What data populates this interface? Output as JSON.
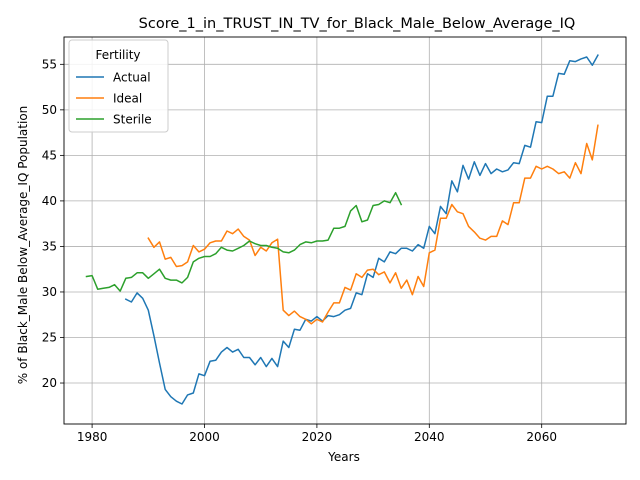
{
  "chart_data": {
    "type": "line",
    "title": "Score_1_in_TRUST_IN_TV_for_Black_Male_Below_Average_IQ",
    "xlabel": "Years",
    "ylabel": "% of Black_Male Below_Average_IQ Population",
    "xlim": [
      1975,
      2075
    ],
    "ylim": [
      15.5,
      58
    ],
    "xticks": [
      1980,
      2000,
      2020,
      2040,
      2060
    ],
    "yticks": [
      20,
      25,
      30,
      35,
      40,
      45,
      50,
      55
    ],
    "grid": true,
    "legend": {
      "title": "Fertility",
      "position": "upper-left"
    },
    "series": [
      {
        "name": "Actual",
        "color": "#1f77b4",
        "x": [
          1986,
          1987,
          1988,
          1989,
          1990,
          1991,
          1992,
          1993,
          1994,
          1995,
          1996,
          1997,
          1998,
          1999,
          2000,
          2001,
          2002,
          2003,
          2004,
          2005,
          2006,
          2007,
          2008,
          2009,
          2010,
          2011,
          2012,
          2013,
          2014,
          2015,
          2016,
          2017,
          2018,
          2019,
          2020,
          2021,
          2022,
          2023,
          2024,
          2025,
          2026,
          2027,
          2028,
          2029,
          2030,
          2031,
          2032,
          2033,
          2034,
          2035,
          2036,
          2037,
          2038,
          2039,
          2040,
          2041,
          2042,
          2043,
          2044,
          2045,
          2046,
          2047,
          2048,
          2049,
          2050,
          2051,
          2052,
          2053,
          2054,
          2055,
          2056,
          2057,
          2058,
          2059,
          2060,
          2061,
          2062,
          2063,
          2064,
          2065,
          2066,
          2067,
          2068,
          2069,
          2070
        ],
        "values": [
          29.2,
          28.9,
          29.9,
          29.3,
          28.0,
          25.2,
          22.2,
          19.3,
          18.5,
          18.0,
          17.7,
          18.7,
          18.9,
          21.0,
          20.8,
          22.4,
          22.5,
          23.4,
          23.9,
          23.4,
          23.7,
          22.8,
          22.8,
          22.0,
          22.8,
          21.8,
          22.7,
          21.8,
          24.6,
          23.9,
          25.9,
          25.8,
          27.0,
          26.8,
          27.3,
          26.8,
          27.4,
          27.3,
          27.5,
          28.0,
          28.2,
          29.9,
          29.7,
          32.0,
          31.6,
          33.7,
          33.3,
          34.4,
          34.2,
          34.8,
          34.8,
          34.5,
          35.2,
          34.8,
          37.2,
          36.4,
          39.4,
          38.6,
          42.2,
          41.0,
          43.9,
          42.4,
          44.3,
          42.8,
          44.1,
          43.0,
          43.5,
          43.2,
          43.4,
          44.2,
          44.1,
          46.1,
          45.9,
          48.7,
          48.6,
          51.5,
          51.5,
          54.0,
          53.9,
          55.4,
          55.3,
          55.6,
          55.8,
          54.9,
          56.0
        ]
      },
      {
        "name": "Ideal",
        "color": "#ff7f0e",
        "x": [
          1990,
          1991,
          1992,
          1993,
          1994,
          1995,
          1996,
          1997,
          1998,
          1999,
          2000,
          2001,
          2002,
          2003,
          2004,
          2005,
          2006,
          2007,
          2008,
          2009,
          2010,
          2011,
          2012,
          2013,
          2014,
          2015,
          2016,
          2017,
          2018,
          2019,
          2020,
          2021,
          2022,
          2023,
          2024,
          2025,
          2026,
          2027,
          2028,
          2029,
          2030,
          2031,
          2032,
          2033,
          2034,
          2035,
          2036,
          2037,
          2038,
          2039,
          2040,
          2041,
          2042,
          2043,
          2044,
          2045,
          2046,
          2047,
          2048,
          2049,
          2050,
          2051,
          2052,
          2053,
          2054,
          2055,
          2056,
          2057,
          2058,
          2059,
          2060,
          2061,
          2062,
          2063,
          2064,
          2065,
          2066,
          2067,
          2068,
          2069,
          2070
        ],
        "values": [
          35.9,
          34.9,
          35.5,
          33.6,
          33.8,
          32.8,
          32.9,
          33.3,
          35.1,
          34.4,
          34.7,
          35.4,
          35.6,
          35.6,
          36.7,
          36.4,
          36.9,
          36.1,
          35.7,
          34.0,
          34.9,
          34.5,
          35.4,
          35.8,
          28.0,
          27.4,
          27.9,
          27.3,
          27.0,
          26.5,
          27.0,
          26.7,
          27.8,
          28.8,
          28.8,
          30.5,
          30.2,
          32.0,
          31.6,
          32.4,
          32.5,
          31.9,
          32.2,
          31.0,
          32.1,
          30.4,
          31.3,
          29.7,
          31.7,
          30.6,
          34.3,
          34.6,
          38.1,
          38.1,
          39.6,
          38.8,
          38.6,
          37.2,
          36.6,
          35.9,
          35.7,
          36.1,
          36.1,
          37.8,
          37.4,
          39.8,
          39.8,
          42.5,
          42.5,
          43.8,
          43.5,
          43.8,
          43.5,
          43.0,
          43.2,
          42.5,
          44.2,
          43.0,
          46.3,
          44.5,
          48.3
        ]
      },
      {
        "name": "Sterile",
        "color": "#2ca02c",
        "x": [
          1979,
          1980,
          1981,
          1982,
          1983,
          1984,
          1985,
          1986,
          1987,
          1988,
          1989,
          1990,
          1991,
          1992,
          1993,
          1994,
          1995,
          1996,
          1997,
          1998,
          1999,
          2000,
          2001,
          2002,
          2003,
          2004,
          2005,
          2006,
          2007,
          2008,
          2009,
          2010,
          2011,
          2012,
          2013,
          2014,
          2015,
          2016,
          2017,
          2018,
          2019,
          2020,
          2021,
          2022,
          2023,
          2024,
          2025,
          2026,
          2027,
          2028,
          2029,
          2030,
          2031,
          2032,
          2033,
          2034,
          2035
        ],
        "values": [
          31.7,
          31.8,
          30.3,
          30.4,
          30.5,
          30.8,
          30.1,
          31.5,
          31.6,
          32.1,
          32.1,
          31.5,
          32.0,
          32.5,
          31.5,
          31.3,
          31.3,
          31.0,
          31.6,
          33.3,
          33.7,
          33.9,
          33.9,
          34.2,
          34.9,
          34.6,
          34.5,
          34.8,
          35.1,
          35.6,
          35.3,
          35.1,
          35.1,
          34.9,
          34.8,
          34.4,
          34.3,
          34.6,
          35.2,
          35.5,
          35.4,
          35.6,
          35.6,
          35.7,
          37.0,
          37.0,
          37.2,
          38.9,
          39.5,
          37.7,
          37.9,
          39.5,
          39.6,
          40.0,
          39.8,
          40.9,
          39.6
        ]
      }
    ]
  }
}
